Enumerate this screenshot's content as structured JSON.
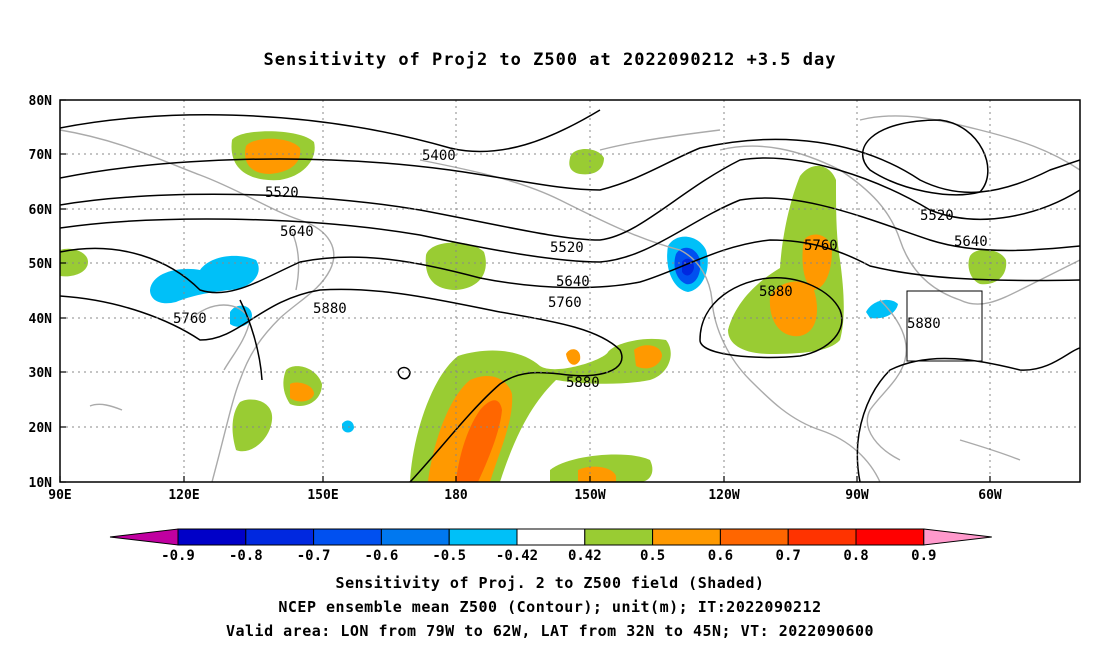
{
  "title": "Sensitivity of Proj2 to Z500 at 2022090212 +3.5 day",
  "map": {
    "lat_labels": [
      "80N",
      "70N",
      "60N",
      "50N",
      "40N",
      "30N",
      "20N",
      "10N"
    ],
    "lon_labels": [
      "90E",
      "120E",
      "150E",
      "180",
      "150W",
      "120W",
      "90W",
      "60W"
    ],
    "grid": "dotted",
    "contour_labels": [
      {
        "text": "5400"
      },
      {
        "text": "5520"
      },
      {
        "text": "5520"
      },
      {
        "text": "5520"
      },
      {
        "text": "5640"
      },
      {
        "text": "5640"
      },
      {
        "text": "5640"
      },
      {
        "text": "5760"
      },
      {
        "text": "5760"
      },
      {
        "text": "5760"
      },
      {
        "text": "5880"
      },
      {
        "text": "5880"
      },
      {
        "text": "5880"
      },
      {
        "text": "5880"
      }
    ],
    "valid_area_box": {
      "lon_from": "79W",
      "lon_to": "62W",
      "lat_from": "32N",
      "lat_to": "45N"
    }
  },
  "colorbar": {
    "labels": [
      "-0.9",
      "-0.8",
      "-0.7",
      "-0.6",
      "-0.5",
      "-0.42",
      "0.42",
      "0.5",
      "0.6",
      "0.7",
      "0.8",
      "0.9"
    ],
    "colors": [
      "#c000a0",
      "#0000c8",
      "#0028e0",
      "#0050f0",
      "#0078f0",
      "#00c0f8",
      "#ffffff",
      "#99cc33",
      "#ff9900",
      "#ff6600",
      "#ff3300",
      "#ff0000",
      "#ff99cc"
    ]
  },
  "captions": {
    "line1": "Sensitivity of Proj. 2 to Z500 field (Shaded)",
    "line2": "NCEP ensemble mean Z500 (Contour); unit(m); IT:2022090212",
    "line3": "Valid area: LON from 79W to 62W, LAT from 32N to 45N; VT: 2022090600"
  }
}
